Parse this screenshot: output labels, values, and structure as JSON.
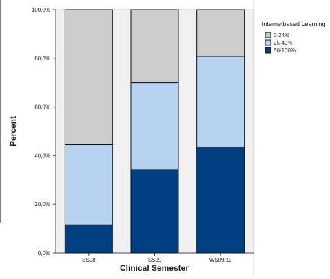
{
  "chart_data": {
    "type": "bar",
    "stacked": true,
    "percent_stacked": true,
    "title": "",
    "xlabel": "Clinical Semester",
    "ylabel": "Percent",
    "ylim": [
      0,
      100
    ],
    "yticks": [
      0,
      20,
      40,
      60,
      80,
      100
    ],
    "ytick_labels": [
      "0,0%",
      "20,0%",
      "40,0%",
      "60,0%",
      "80,0%",
      "100,0%"
    ],
    "grid": false,
    "legend": {
      "title": "Internetbased Learning",
      "placement": "top-right outside plot area"
    },
    "categories": [
      "SS08",
      "SS09",
      "WS09/10"
    ],
    "series": [
      {
        "name": "50-100%",
        "color": "#003f7f",
        "values": [
          11.5,
          34.2,
          43.3
        ]
      },
      {
        "name": "25-49%",
        "color": "#b5d3f1",
        "values": [
          33.0,
          35.7,
          37.5
        ]
      },
      {
        "name": "0-24%",
        "color": "#cccccc",
        "values": [
          55.5,
          30.1,
          19.2
        ]
      }
    ],
    "plot_background": "#f0f0f0"
  }
}
